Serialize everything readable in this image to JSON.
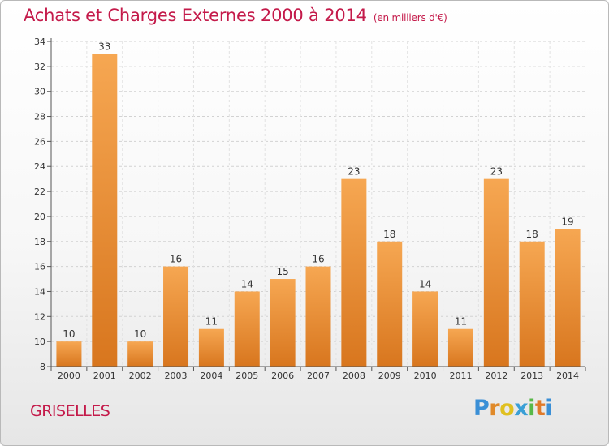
{
  "title": "Achats et Charges Externes 2000 à 2014",
  "unit": "(en milliers d'€)",
  "commune": "GRISELLES",
  "logo": {
    "p": "P",
    "r": "r",
    "o": "o",
    "x": "x",
    "i1": "i",
    "t": "t",
    "i2": "i"
  },
  "colors": {
    "title": "#c41a4a",
    "bar_light": "#f6a752",
    "bar_dark": "#d8761e"
  },
  "chart_data": {
    "type": "bar",
    "title": "Achats et Charges Externes 2000 à 2014",
    "subtitle": "(en milliers d'€)",
    "xlabel": "",
    "ylabel": "",
    "categories": [
      "2000",
      "2001",
      "2002",
      "2003",
      "2004",
      "2005",
      "2006",
      "2007",
      "2008",
      "2009",
      "2010",
      "2011",
      "2012",
      "2013",
      "2014"
    ],
    "values": [
      10,
      33,
      10,
      16,
      11,
      14,
      15,
      16,
      23,
      18,
      14,
      11,
      23,
      18,
      19
    ],
    "ylim": [
      8,
      34
    ],
    "yticks": [
      8,
      10,
      12,
      14,
      16,
      18,
      20,
      22,
      24,
      26,
      28,
      30,
      32,
      34
    ],
    "grid": true
  }
}
